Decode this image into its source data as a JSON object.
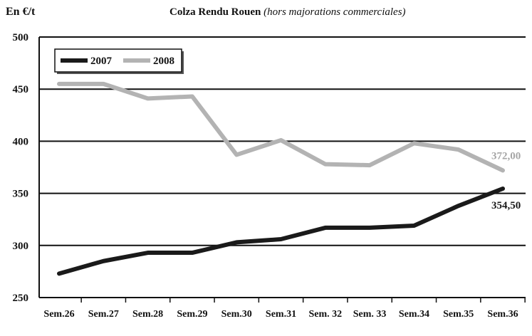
{
  "chart_data": {
    "type": "line",
    "title": "Colza Rendu Rouen",
    "subtitle": "(hors majorations commerciales)",
    "ylabel": "En €/t",
    "xlabel": "",
    "categories": [
      "Sem.26",
      "Sem.27",
      "Sem.28",
      "Sem.29",
      "Sem.30",
      "Sem.31",
      "Sem. 32",
      "Sem. 33",
      "Sem.34",
      "Sem.35",
      "Sem.36"
    ],
    "ylim": [
      250,
      500
    ],
    "yticks": [
      "250",
      "300",
      "350",
      "400",
      "450",
      "500"
    ],
    "grid": true,
    "legend_position": "top-left",
    "series": [
      {
        "name": "2007",
        "color": "#1a1a1a",
        "values": [
          273,
          285,
          293,
          293,
          303,
          306,
          317,
          317,
          319,
          338,
          354.5
        ],
        "end_label": "354,50",
        "end_label_color": "#1a1a1a"
      },
      {
        "name": "2008",
        "color": "#b3b3b3",
        "values": [
          455,
          455,
          441,
          443,
          387,
          401,
          378,
          377,
          398,
          392,
          372
        ],
        "end_label": "372,00",
        "end_label_color": "#a6a6a6"
      }
    ]
  }
}
